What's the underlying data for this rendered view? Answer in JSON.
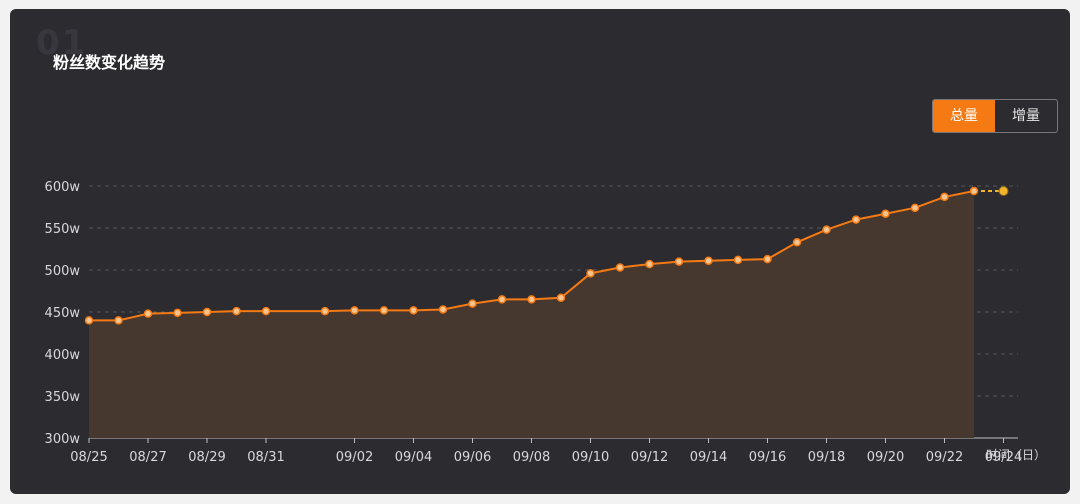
{
  "header": {
    "number": "01",
    "title": "粉丝数变化趋势"
  },
  "toggle": {
    "options": [
      "总量",
      "增量"
    ],
    "active": 0
  },
  "colors": {
    "line": "#f57a13",
    "area": "#47382f",
    "point_fill": "#f5c48f",
    "forecast_point": "#f2b42a",
    "grid": "#55545a"
  },
  "chart_data": {
    "type": "line",
    "x_unit": "时间（日）",
    "y_tick_labels": [
      "300w",
      "350w",
      "400w",
      "450w",
      "500w",
      "550w",
      "600w"
    ],
    "y_ticks": [
      300,
      350,
      400,
      450,
      500,
      550,
      600
    ],
    "ylim": [
      300,
      600
    ],
    "x_tick_labels": [
      "08/25",
      "08/27",
      "08/29",
      "08/31",
      "09/02",
      "09/04",
      "09/06",
      "09/08",
      "09/10",
      "09/12",
      "09/14",
      "09/16",
      "09/18",
      "09/20",
      "09/22",
      "09/24"
    ],
    "grid": true,
    "series": [
      {
        "x": [
          "08/25",
          "08/26",
          "08/27",
          "08/28",
          "08/29",
          "08/30",
          "08/31",
          "09/01",
          "09/02",
          "09/03",
          "09/04",
          "09/05",
          "09/06",
          "09/07",
          "09/08",
          "09/09",
          "09/10",
          "09/11",
          "09/12",
          "09/13",
          "09/14",
          "09/15",
          "09/16",
          "09/17",
          "09/18",
          "09/19",
          "09/20",
          "09/21",
          "09/22",
          "09/23"
        ],
        "y": [
          440,
          440,
          448,
          449,
          450,
          451,
          451,
          451,
          452,
          452,
          452,
          453,
          460,
          465,
          465,
          467,
          496,
          503,
          507,
          510,
          511,
          512,
          513,
          533,
          548,
          560,
          567,
          574,
          587,
          594
        ]
      }
    ],
    "forecast": {
      "x": "09/24",
      "y": 594
    }
  }
}
